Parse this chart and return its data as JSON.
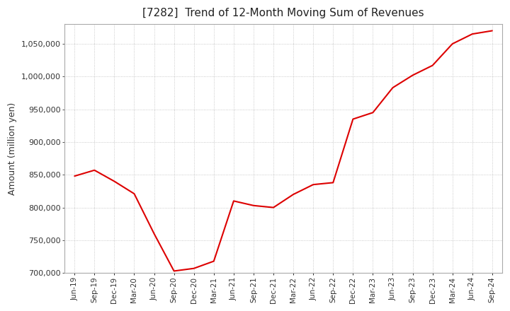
{
  "title": "[7282]  Trend of 12-Month Moving Sum of Revenues",
  "ylabel": "Amount (million yen)",
  "line_color": "#dd0000",
  "background_color": "#ffffff",
  "plot_bg_color": "#ffffff",
  "grid_color": "#bbbbbb",
  "ylim": [
    700000,
    1080000
  ],
  "yticks": [
    700000,
    750000,
    800000,
    850000,
    900000,
    950000,
    1000000,
    1050000
  ],
  "x_labels": [
    "Jun-19",
    "Sep-19",
    "Dec-19",
    "Mar-20",
    "Jun-20",
    "Sep-20",
    "Dec-20",
    "Mar-21",
    "Jun-21",
    "Sep-21",
    "Dec-21",
    "Mar-22",
    "Jun-22",
    "Sep-22",
    "Dec-22",
    "Mar-23",
    "Jun-23",
    "Sep-23",
    "Dec-23",
    "Mar-24",
    "Jun-24",
    "Sep-24"
  ],
  "values_x": [
    0,
    1,
    2,
    3,
    4,
    5,
    6,
    7,
    8,
    9,
    10,
    11,
    12,
    13,
    14,
    15,
    16,
    17,
    18,
    19,
    20,
    21
  ],
  "values_y": [
    848000,
    857000,
    840000,
    821000,
    760000,
    703000,
    707000,
    718000,
    810000,
    803000,
    800000,
    820000,
    835000,
    838000,
    935000,
    945000,
    983000,
    1002000,
    1017000,
    1050000,
    1065000,
    1070000
  ]
}
